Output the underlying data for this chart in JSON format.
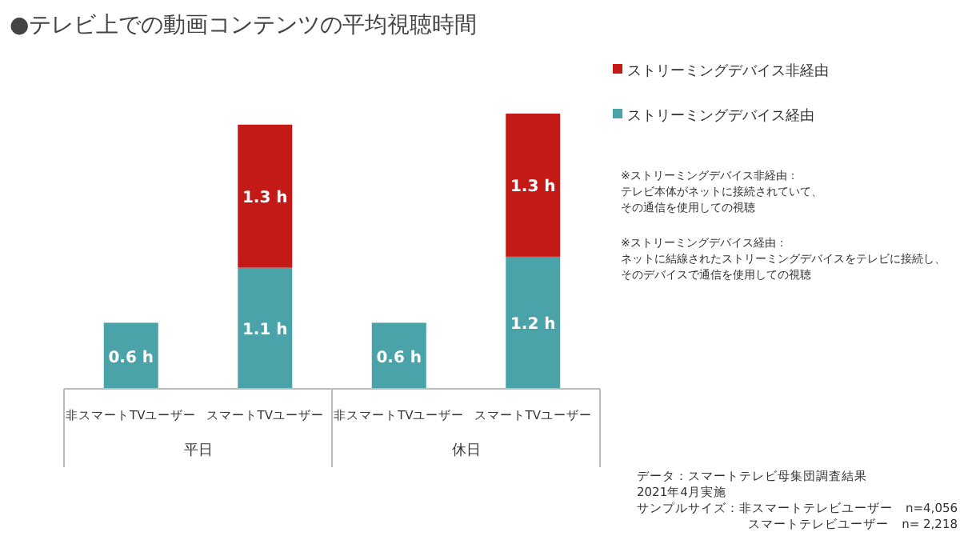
{
  "chart_data": {
    "type": "bar",
    "title": "●テレビ上での動画コンテンツの平均視聴時間",
    "categories": [
      "非スマートTVユーザー",
      "スマートTVユーザー",
      "非スマートTVユーザー",
      "スマートTVユーザー"
    ],
    "stacked": true,
    "legend": "top right",
    "series": [
      {
        "name": "ストリーミングデバイス経由",
        "color": "#4aa3a8",
        "values": [
          0.6,
          1.1,
          0.6,
          1.2
        ],
        "value_labels": [
          "0.6 h",
          "1.1 h",
          "0.6 h",
          "1.2 h"
        ]
      },
      {
        "name": "ストリーミングデバイス非経由",
        "color": "#c41a17",
        "values": [
          null,
          1.3,
          null,
          1.3
        ],
        "value_labels": [
          null,
          "1.3 h",
          null,
          "1.3 h"
        ]
      }
    ],
    "annotations": [
      "平日",
      "休日",
      "※ストリーミングデバイス非経由：",
      "テレビ本体がネットに接続されていて、",
      "その通信を使用しての視聴",
      "※ストリーミングデバイス経由：",
      "ネットに結線されたストリーミングデバイスをテレビに接続し、",
      "そのデバイスで通信を使用しての視聴",
      "データ：スマートテレビ母集団調査結果",
      "2021年4月実施",
      "サンプルサイズ：非スマートテレビユーザー　n=4,056",
      "スマートテレビユーザー　n= 2,218"
    ]
  }
}
